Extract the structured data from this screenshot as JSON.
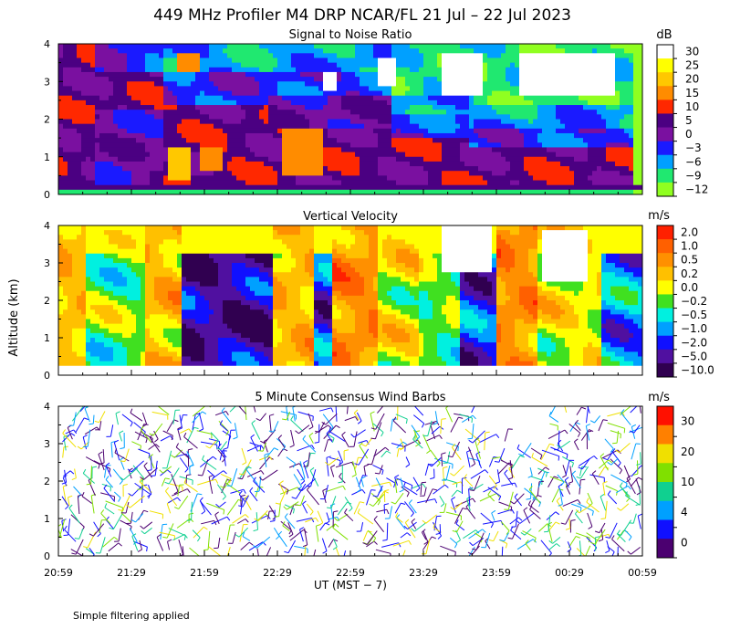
{
  "chart_data": {
    "type": "heatmap",
    "title": "449 MHz Profiler M4 DRP NCAR/FL 21 Jul – 22 Jul 2023",
    "xlabel": "UT  (MST − 7)",
    "ylabel": "Altitude (km)",
    "x_tick_labels": [
      "20:59",
      "21:29",
      "21:59",
      "22:29",
      "22:59",
      "23:29",
      "23:59",
      "00:29",
      "00:59"
    ],
    "y_range_km": [
      0,
      4
    ],
    "y_tick_labels": [
      "0",
      "1",
      "2",
      "3",
      "4"
    ],
    "panels": [
      {
        "id": "snr",
        "title": "Signal to Noise Ratio",
        "units": "dB",
        "colorbar_levels": [
          "30",
          "25",
          "20",
          "15",
          "10",
          "5",
          "0",
          "−3",
          "−6",
          "−9",
          "−12"
        ],
        "colorbar_colors": [
          "#ffffff",
          "#ffff00",
          "#ffc800",
          "#ff8c00",
          "#ff2800",
          "#4b0082",
          "#7a10a0",
          "#1a1aff",
          "#00a0ff",
          "#20e870",
          "#90ff20"
        ]
      },
      {
        "id": "vv",
        "title": "Vertical Velocity",
        "units": "m/s",
        "colorbar_levels": [
          "2.0",
          "1.0",
          "0.5",
          "0.2",
          "0.0",
          "−0.2",
          "−0.5",
          "−1.0",
          "−2.0",
          "−5.0",
          "−10.0"
        ],
        "colorbar_colors": [
          "#ff2000",
          "#ff6000",
          "#ff9000",
          "#ffc000",
          "#ffff00",
          "#40e020",
          "#00f0e0",
          "#00a0ff",
          "#1010ff",
          "#5010a0",
          "#300050"
        ]
      },
      {
        "id": "wind",
        "title": "5 Minute Consensus Wind Barbs",
        "units": "m/s",
        "colorbar_levels": [
          "30",
          "20",
          "10",
          "4",
          "0"
        ],
        "colorbar_colors": [
          "#ff1000",
          "#ff8000",
          "#f0e000",
          "#80e000",
          "#10d090",
          "#00a0ff",
          "#1010ff",
          "#4b0070"
        ]
      }
    ]
  },
  "footnote": "Simple filtering applied"
}
